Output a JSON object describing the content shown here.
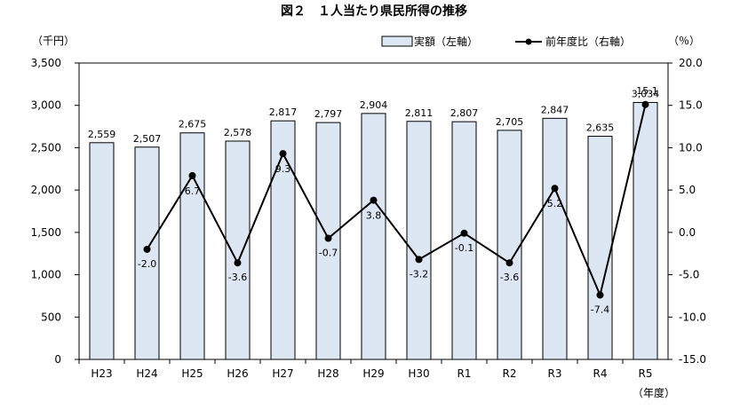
{
  "chart_data": {
    "type": "bar+line",
    "title": "図２　１人当たり県民所得の推移",
    "left_unit": "（千円）",
    "right_unit": "（％）",
    "x_unit": "（年度）",
    "categories": [
      "H23",
      "H24",
      "H25",
      "H26",
      "H27",
      "H28",
      "H29",
      "H30",
      "R1",
      "R2",
      "R3",
      "R4",
      "R5"
    ],
    "series": [
      {
        "name": "実額（左軸）",
        "type": "bar",
        "axis": "left",
        "values": [
          2559,
          2507,
          2675,
          2578,
          2817,
          2797,
          2904,
          2811,
          2807,
          2705,
          2847,
          2635,
          3034
        ],
        "labels": [
          "2,559",
          "2,507",
          "2,675",
          "2,578",
          "2,817",
          "2,797",
          "2,904",
          "2,811",
          "2,807",
          "2,705",
          "2,847",
          "2,635",
          "3,034"
        ]
      },
      {
        "name": "前年度比（右軸）",
        "type": "line",
        "axis": "right",
        "values": [
          null,
          -2.0,
          6.7,
          -3.6,
          9.3,
          -0.7,
          3.8,
          -3.2,
          -0.1,
          -3.6,
          5.2,
          -7.4,
          15.1
        ],
        "labels": [
          "",
          "-2.0",
          "6.7",
          "-3.6",
          "9.3",
          "-0.7",
          "3.8",
          "-3.2",
          "-0.1",
          "-3.6",
          "5.2",
          "-7.4",
          "15.1"
        ]
      }
    ],
    "left_axis": {
      "min": 0,
      "max": 3500,
      "ticks": [
        "0",
        "500",
        "1,000",
        "1,500",
        "2,000",
        "2,500",
        "3,000",
        "3,500"
      ]
    },
    "right_axis": {
      "min": -15,
      "max": 20,
      "ticks": [
        "-15.0",
        "-10.0",
        "-5.0",
        "0.0",
        "5.0",
        "10.0",
        "15.0",
        "20.0"
      ]
    },
    "grid": false,
    "legend_position": "top-right",
    "colors": {
      "bar_fill": "#dde6f3",
      "bar_stroke": "#000000",
      "line": "#000000"
    }
  }
}
